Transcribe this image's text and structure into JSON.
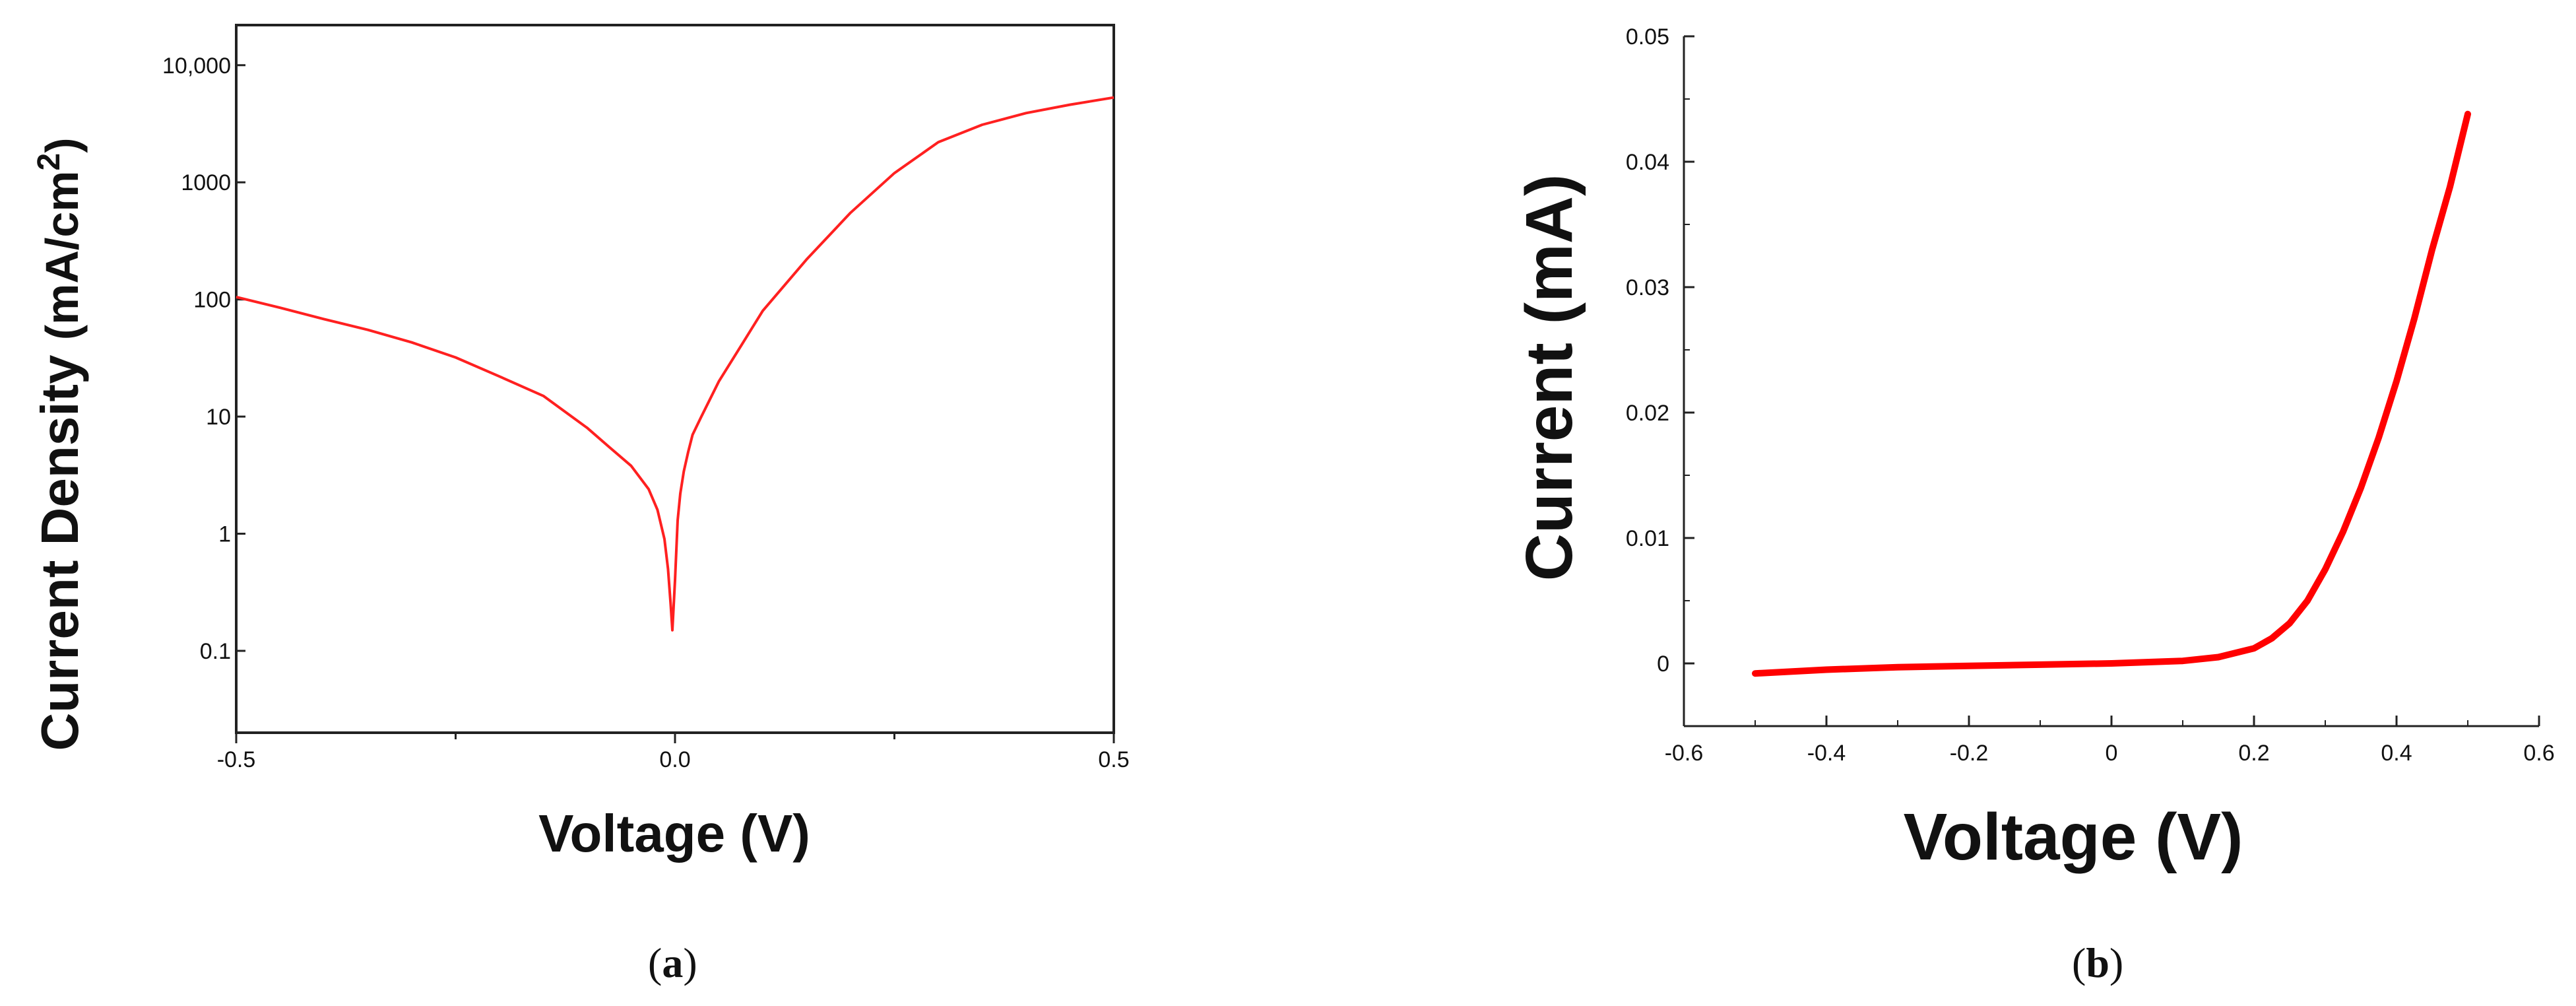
{
  "chart_data": [
    {
      "panel": "(a)",
      "type": "line",
      "xlabel": "Voltage (V)",
      "ylabel_main": "Current Density ",
      "ylabel_unit": "(mA/cm",
      "ylabel_sup": "2",
      "ylabel_close": ")",
      "yscale": "log",
      "xlim": [
        -0.5,
        0.5
      ],
      "ylim": [
        0.02,
        22000
      ],
      "x_ticks": [
        {
          "value": -0.5,
          "label": "-0.5"
        },
        {
          "value": 0.0,
          "label": "0.0"
        },
        {
          "value": 0.5,
          "label": "0.5"
        }
      ],
      "x_minor_ticks": [
        -0.25,
        0.25
      ],
      "y_ticks": [
        {
          "value": 0.1,
          "label": "0.1"
        },
        {
          "value": 1,
          "label": "1"
        },
        {
          "value": 10,
          "label": "10"
        },
        {
          "value": 100,
          "label": "100"
        },
        {
          "value": 1000,
          "label": "1000"
        },
        {
          "value": 10000,
          "label": "10,000"
        }
      ],
      "series": [
        {
          "color": "#ff2020",
          "x": [
            -0.5,
            -0.45,
            -0.4,
            -0.35,
            -0.3,
            -0.25,
            -0.2,
            -0.15,
            -0.1,
            -0.075,
            -0.05,
            -0.03,
            -0.02,
            -0.012,
            -0.008,
            -0.005,
            -0.003,
            0.0,
            0.003,
            0.006,
            0.01,
            0.015,
            0.02,
            0.03,
            0.05,
            0.075,
            0.1,
            0.15,
            0.2,
            0.25,
            0.3,
            0.35,
            0.4,
            0.45,
            0.5
          ],
          "y": [
            105,
            85,
            68,
            55,
            43,
            32,
            22,
            15,
            8,
            5.5,
            3.8,
            2.4,
            1.6,
            0.9,
            0.5,
            0.25,
            0.15,
            0.4,
            1.3,
            2.2,
            3.4,
            5.0,
            7.0,
            10,
            20,
            40,
            80,
            220,
            550,
            1200,
            2200,
            3100,
            3900,
            4600,
            5300
          ]
        }
      ]
    },
    {
      "panel": "(b)",
      "type": "line",
      "xlabel": "Voltage (V)",
      "ylabel": "Current (mA)",
      "xlim": [
        -0.6,
        0.6
      ],
      "ylim": [
        -0.005,
        0.05
      ],
      "x_ticks": [
        {
          "value": -0.6,
          "label": "-0.6"
        },
        {
          "value": -0.4,
          "label": "-0.4"
        },
        {
          "value": -0.2,
          "label": "-0.2"
        },
        {
          "value": 0.0,
          "label": "0"
        },
        {
          "value": 0.2,
          "label": "0.2"
        },
        {
          "value": 0.4,
          "label": "0.4"
        },
        {
          "value": 0.6,
          "label": "0.6"
        }
      ],
      "y_ticks": [
        {
          "value": 0.0,
          "label": "0"
        },
        {
          "value": 0.01,
          "label": "0.01"
        },
        {
          "value": 0.02,
          "label": "0.02"
        },
        {
          "value": 0.03,
          "label": "0.03"
        },
        {
          "value": 0.04,
          "label": "0.04"
        },
        {
          "value": 0.05,
          "label": "0.05"
        }
      ],
      "series": [
        {
          "color": "#ff0000",
          "x": [
            -0.5,
            -0.4,
            -0.3,
            -0.2,
            -0.1,
            0.0,
            0.1,
            0.15,
            0.2,
            0.225,
            0.25,
            0.275,
            0.3,
            0.325,
            0.35,
            0.375,
            0.4,
            0.425,
            0.45,
            0.475,
            0.5
          ],
          "y": [
            -0.0008,
            -0.0005,
            -0.0003,
            -0.0002,
            -0.0001,
            0.0,
            0.0002,
            0.0005,
            0.0012,
            0.002,
            0.0032,
            0.005,
            0.0075,
            0.0105,
            0.014,
            0.018,
            0.0225,
            0.0275,
            0.033,
            0.038,
            0.0438
          ]
        }
      ]
    }
  ]
}
